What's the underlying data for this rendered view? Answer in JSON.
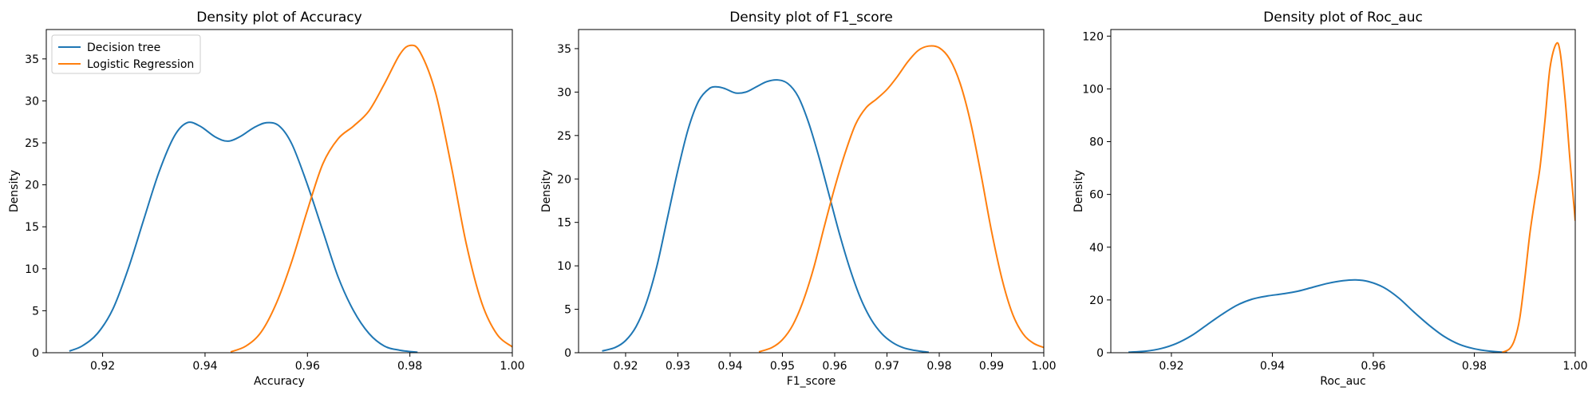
{
  "chart_data": [
    {
      "type": "line",
      "title": "Density plot of Accuracy",
      "xlabel": "Accuracy",
      "ylabel": "Density",
      "xlim": [
        0.909,
        1.0
      ],
      "ylim": [
        0,
        38.5
      ],
      "xticks": [
        0.92,
        0.94,
        0.96,
        0.98,
        1.0
      ],
      "xtick_labels": [
        "0.92",
        "0.94",
        "0.96",
        "0.98",
        "1.00"
      ],
      "yticks": [
        0,
        5,
        10,
        15,
        20,
        25,
        30,
        35
      ],
      "ytick_labels": [
        "0",
        "5",
        "10",
        "15",
        "20",
        "25",
        "30",
        "35"
      ],
      "grid": false,
      "legend": "top-left",
      "series": [
        {
          "name": "Decision tree",
          "color": "#1f77b4",
          "x": [
            0.9135,
            0.916,
            0.919,
            0.922,
            0.925,
            0.928,
            0.931,
            0.934,
            0.9365,
            0.939,
            0.942,
            0.9445,
            0.947,
            0.9495,
            0.952,
            0.9545,
            0.957,
            0.96,
            0.963,
            0.966,
            0.969,
            0.972,
            0.975,
            0.978,
            0.9815
          ],
          "y": [
            0.2,
            0.8,
            2.3,
            5.2,
            10.0,
            15.8,
            21.5,
            25.8,
            27.4,
            27.0,
            25.7,
            25.2,
            25.8,
            26.8,
            27.4,
            27.0,
            24.8,
            20.0,
            14.5,
            9.0,
            5.0,
            2.3,
            0.8,
            0.3,
            0.05
          ]
        },
        {
          "name": "Logistic Regression",
          "color": "#ff7f0e",
          "x": [
            0.945,
            0.948,
            0.951,
            0.954,
            0.957,
            0.96,
            0.963,
            0.966,
            0.969,
            0.972,
            0.975,
            0.978,
            0.98,
            0.982,
            0.985,
            0.988,
            0.991,
            0.994,
            0.997,
            1.0
          ],
          "y": [
            0.1,
            0.8,
            2.5,
            6.0,
            11.0,
            17.0,
            22.5,
            25.5,
            27.0,
            28.8,
            32.0,
            35.5,
            36.6,
            35.8,
            31.0,
            22.5,
            13.0,
            6.0,
            2.2,
            0.7
          ]
        }
      ]
    },
    {
      "type": "line",
      "title": "Density plot of F1_score",
      "xlabel": "F1_score",
      "ylabel": "Density",
      "xlim": [
        0.911,
        1.0
      ],
      "ylim": [
        0,
        37.2
      ],
      "xticks": [
        0.92,
        0.93,
        0.94,
        0.95,
        0.96,
        0.97,
        0.98,
        0.99,
        1.0
      ],
      "xtick_labels": [
        "0.92",
        "0.93",
        "0.94",
        "0.95",
        "0.96",
        "0.97",
        "0.98",
        "0.99",
        "1.00"
      ],
      "yticks": [
        0,
        5,
        10,
        15,
        20,
        25,
        30,
        35
      ],
      "ytick_labels": [
        "0",
        "5",
        "10",
        "15",
        "20",
        "25",
        "30",
        "35"
      ],
      "grid": false,
      "legend": "",
      "series": [
        {
          "name": "Decision tree",
          "color": "#1f77b4",
          "x": [
            0.9155,
            0.918,
            0.92,
            0.922,
            0.924,
            0.926,
            0.928,
            0.93,
            0.932,
            0.934,
            0.936,
            0.9375,
            0.939,
            0.941,
            0.943,
            0.945,
            0.947,
            0.949,
            0.951,
            0.953,
            0.955,
            0.957,
            0.959,
            0.961,
            0.963,
            0.965,
            0.967,
            0.969,
            0.971,
            0.973,
            0.975,
            0.978
          ],
          "y": [
            0.2,
            0.6,
            1.4,
            3.0,
            5.8,
            10.0,
            15.5,
            21.0,
            25.8,
            29.0,
            30.4,
            30.6,
            30.4,
            29.9,
            30.0,
            30.6,
            31.2,
            31.4,
            31.0,
            29.5,
            26.5,
            22.5,
            18.0,
            13.5,
            9.5,
            6.2,
            3.8,
            2.2,
            1.2,
            0.6,
            0.3,
            0.05
          ]
        },
        {
          "name": "Logistic Regression",
          "color": "#ff7f0e",
          "x": [
            0.9455,
            0.948,
            0.95,
            0.952,
            0.954,
            0.956,
            0.958,
            0.96,
            0.962,
            0.964,
            0.966,
            0.968,
            0.97,
            0.972,
            0.974,
            0.976,
            0.978,
            0.98,
            0.982,
            0.984,
            0.986,
            0.988,
            0.99,
            0.992,
            0.994,
            0.996,
            0.998,
            1.0
          ],
          "y": [
            0.1,
            0.6,
            1.5,
            3.2,
            6.0,
            9.8,
            14.5,
            19.0,
            23.0,
            26.3,
            28.2,
            29.2,
            30.3,
            31.8,
            33.5,
            34.8,
            35.3,
            35.1,
            33.8,
            31.0,
            26.5,
            20.5,
            14.0,
            8.5,
            4.5,
            2.2,
            1.1,
            0.6
          ]
        }
      ]
    },
    {
      "type": "line",
      "title": "Density plot of Roc_auc",
      "xlabel": "Roc_auc",
      "ylabel": "Density",
      "xlim": [
        0.908,
        1.0
      ],
      "ylim": [
        0,
        122.5
      ],
      "xticks": [
        0.92,
        0.94,
        0.96,
        0.98,
        1.0
      ],
      "xtick_labels": [
        "0.92",
        "0.94",
        "0.96",
        "0.98",
        "1.00"
      ],
      "yticks": [
        0,
        20,
        40,
        60,
        80,
        100,
        120
      ],
      "ytick_labels": [
        "0",
        "20",
        "40",
        "60",
        "80",
        "100",
        "120"
      ],
      "grid": false,
      "legend": "",
      "series": [
        {
          "name": "Decision tree",
          "color": "#1f77b4",
          "x": [
            0.9115,
            0.915,
            0.918,
            0.921,
            0.924,
            0.927,
            0.93,
            0.933,
            0.936,
            0.939,
            0.942,
            0.945,
            0.948,
            0.951,
            0.954,
            0.9565,
            0.959,
            0.962,
            0.965,
            0.968,
            0.971,
            0.974,
            0.977,
            0.98,
            0.983,
            0.9865
          ],
          "y": [
            0.2,
            0.6,
            1.6,
            3.5,
            6.5,
            10.5,
            14.5,
            18.0,
            20.3,
            21.5,
            22.3,
            23.3,
            24.8,
            26.3,
            27.3,
            27.6,
            27.0,
            24.8,
            20.8,
            15.5,
            10.5,
            6.2,
            3.2,
            1.5,
            0.6,
            0.1
          ]
        },
        {
          "name": "Logistic Regression",
          "color": "#ff7f0e",
          "x": [
            0.9855,
            0.987,
            0.988,
            0.989,
            0.99,
            0.991,
            0.992,
            0.993,
            0.994,
            0.995,
            0.9962,
            0.997,
            0.998,
            0.999,
            1.0
          ],
          "y": [
            0.1,
            1.5,
            5.0,
            13.0,
            28.0,
            45.0,
            58.0,
            70.0,
            88.0,
            108.0,
            117.0,
            114.0,
            96.0,
            72.0,
            50.0
          ]
        }
      ]
    }
  ]
}
